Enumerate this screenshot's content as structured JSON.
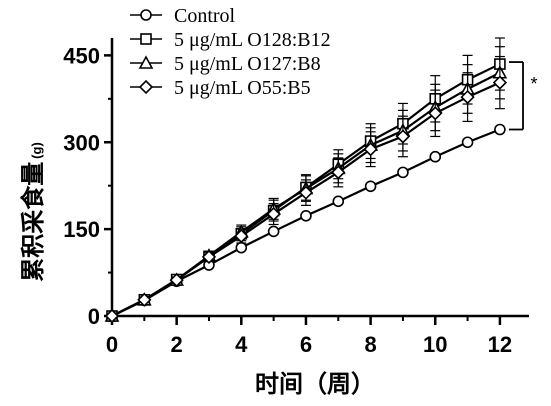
{
  "chart_data": {
    "type": "line",
    "xlabel": "时间（周）",
    "ylabel": "累积采食量",
    "ylabel_unit": "(g)",
    "xlim": [
      0,
      12.9
    ],
    "ylim": [
      0,
      480
    ],
    "xticks": [
      0,
      2,
      4,
      6,
      8,
      10,
      12
    ],
    "yticks": [
      0,
      150,
      300,
      450
    ],
    "x": [
      0,
      1,
      2,
      3,
      4,
      5,
      6,
      7,
      8,
      9,
      10,
      11,
      12
    ],
    "legend_position": "top-left",
    "series": [
      {
        "name": "Control",
        "marker": "circle",
        "values": [
          0,
          27,
          60,
          88,
          118,
          146,
          173,
          198,
          224,
          248,
          275,
          300,
          322
        ],
        "errors": [
          0,
          2,
          2,
          2,
          3,
          3,
          3,
          3,
          3,
          3,
          3,
          3,
          3
        ]
      },
      {
        "name": "5 μg/mL  O128:B12",
        "marker": "square",
        "values": [
          0,
          28,
          63,
          103,
          142,
          182,
          222,
          262,
          302,
          332,
          375,
          408,
          435
        ],
        "errors": [
          0,
          4,
          5,
          8,
          12,
          18,
          22,
          25,
          30,
          35,
          40,
          42,
          45
        ]
      },
      {
        "name": "5 μg/mL  O127:B8",
        "marker": "triangle",
        "values": [
          0,
          28,
          62,
          104,
          145,
          185,
          220,
          255,
          295,
          320,
          360,
          392,
          420
        ],
        "errors": [
          0,
          4,
          5,
          8,
          12,
          18,
          22,
          25,
          30,
          35,
          40,
          42,
          45
        ]
      },
      {
        "name": "5 μg/mL  O55:B5",
        "marker": "diamond",
        "values": [
          0,
          28,
          62,
          102,
          138,
          176,
          213,
          248,
          288,
          310,
          350,
          378,
          403
        ],
        "errors": [
          0,
          4,
          5,
          8,
          12,
          18,
          22,
          25,
          30,
          35,
          40,
          42,
          45
        ]
      }
    ],
    "significance": {
      "label": "*"
    }
  }
}
